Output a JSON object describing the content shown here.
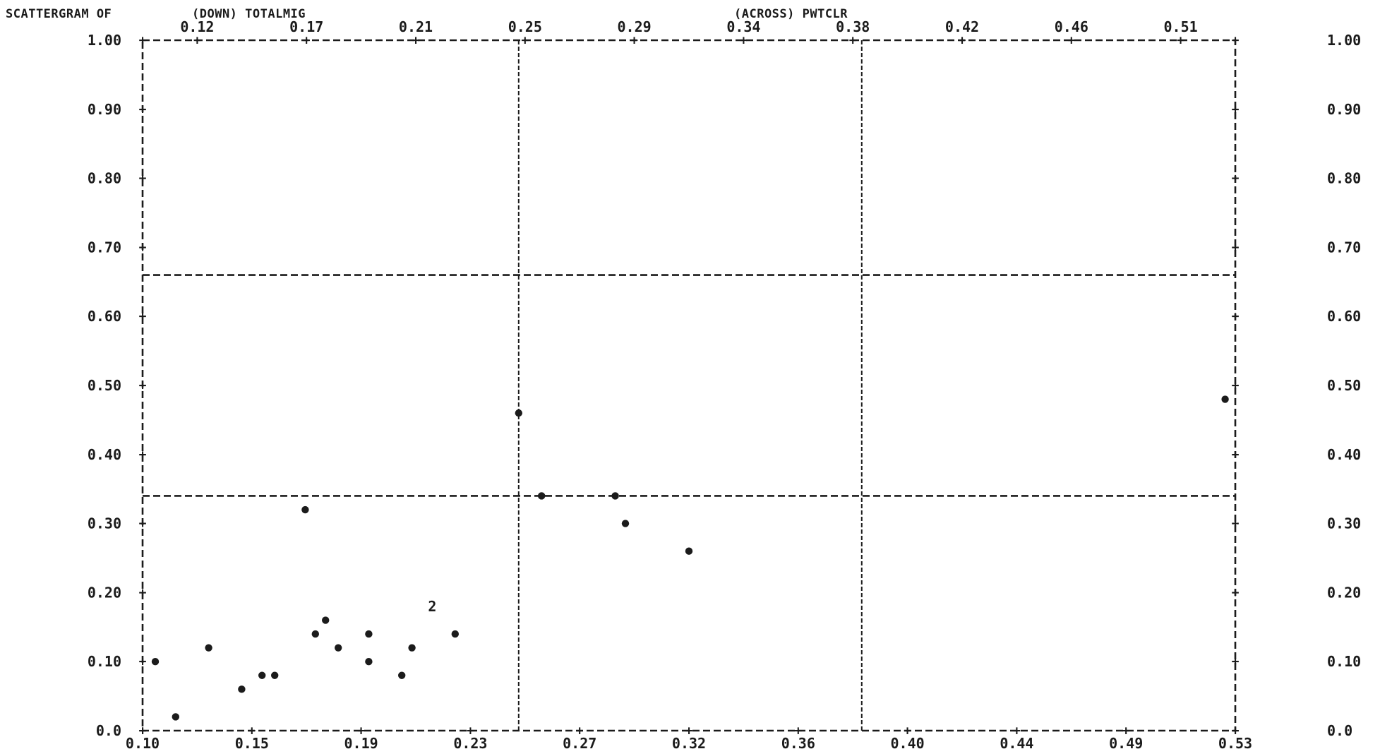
{
  "header": {
    "prefix": "SCATTERGRAM OF",
    "y_variable": "(DOWN) TOTALMIG",
    "x_variable": "(ACROSS) PWTCLR"
  },
  "chart_data": {
    "type": "scatter",
    "xlim": [
      0.1,
      0.53
    ],
    "ylim": [
      0.0,
      1.0
    ],
    "grid": false,
    "x_top_ticks": [
      "0.12",
      "0.17",
      "0.21",
      "0.25",
      "0.29",
      "0.34",
      "0.38",
      "0.42",
      "0.46",
      "0.51"
    ],
    "x_bottom_ticks": [
      "0.10",
      "0.15",
      "0.19",
      "0.23",
      "0.27",
      "0.32",
      "0.36",
      "0.40",
      "0.44",
      "0.49",
      "0.53"
    ],
    "y_ticks": [
      "1.00",
      "0.90",
      "0.80",
      "0.70",
      "0.60",
      "0.50",
      "0.40",
      "0.30",
      "0.20",
      "0.10",
      "0.0"
    ],
    "reference_lines": {
      "horizontal": [
        0.66,
        0.34
      ],
      "vertical": [
        0.248,
        0.383
      ]
    },
    "points": [
      {
        "x": 0.105,
        "y": 0.1,
        "mark": "*"
      },
      {
        "x": 0.113,
        "y": 0.02,
        "mark": "*"
      },
      {
        "x": 0.126,
        "y": 0.12,
        "mark": "*"
      },
      {
        "x": 0.139,
        "y": 0.06,
        "mark": "*"
      },
      {
        "x": 0.147,
        "y": 0.08,
        "mark": "*"
      },
      {
        "x": 0.152,
        "y": 0.08,
        "mark": "*"
      },
      {
        "x": 0.164,
        "y": 0.32,
        "mark": "*"
      },
      {
        "x": 0.168,
        "y": 0.14,
        "mark": "*"
      },
      {
        "x": 0.172,
        "y": 0.16,
        "mark": "*"
      },
      {
        "x": 0.177,
        "y": 0.12,
        "mark": "*"
      },
      {
        "x": 0.189,
        "y": 0.14,
        "mark": "*"
      },
      {
        "x": 0.189,
        "y": 0.1,
        "mark": "*"
      },
      {
        "x": 0.202,
        "y": 0.08,
        "mark": "*"
      },
      {
        "x": 0.206,
        "y": 0.12,
        "mark": "*"
      },
      {
        "x": 0.214,
        "y": 0.18,
        "mark": "2"
      },
      {
        "x": 0.223,
        "y": 0.14,
        "mark": "*"
      },
      {
        "x": 0.248,
        "y": 0.46,
        "mark": "*"
      },
      {
        "x": 0.257,
        "y": 0.34,
        "mark": "*"
      },
      {
        "x": 0.286,
        "y": 0.34,
        "mark": "*"
      },
      {
        "x": 0.29,
        "y": 0.3,
        "mark": "*"
      },
      {
        "x": 0.315,
        "y": 0.26,
        "mark": "*"
      },
      {
        "x": 0.526,
        "y": 0.48,
        "mark": "*"
      }
    ]
  }
}
